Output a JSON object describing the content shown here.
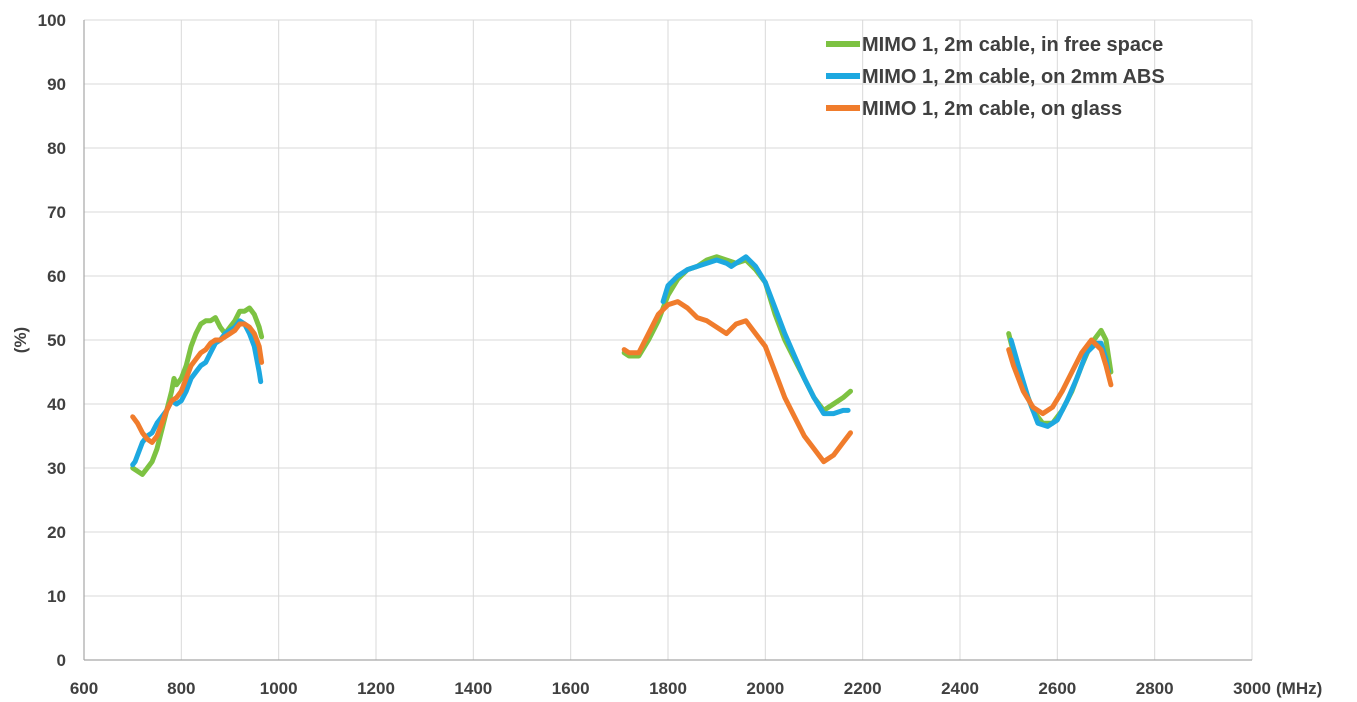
{
  "chart_data": {
    "type": "line",
    "title": "",
    "xlabel": "(MHz)",
    "ylabel": "(%)",
    "xlim": [
      600,
      3000
    ],
    "ylim": [
      0,
      100
    ],
    "x_ticks": [
      600,
      800,
      1000,
      1200,
      1400,
      1600,
      1800,
      2000,
      2200,
      2400,
      2600,
      2800,
      3000
    ],
    "y_ticks": [
      0,
      10,
      20,
      30,
      40,
      50,
      60,
      70,
      80,
      90,
      100
    ],
    "x_tick_labels": [
      "600",
      "800",
      "1000",
      "1200",
      "1400",
      "1600",
      "1800",
      "2000",
      "2200",
      "2400",
      "2600",
      "2800",
      "3000"
    ],
    "y_tick_labels": [
      "0",
      "10",
      "20",
      "30",
      "40",
      "50",
      "60",
      "70",
      "80",
      "90",
      "100"
    ],
    "grid": true,
    "legend_position": "top-right",
    "series": [
      {
        "name": "MIMO 1, 2m cable, in free space",
        "color": "#7dc242",
        "segments": [
          [
            [
              700,
              30
            ],
            [
              710,
              29.5
            ],
            [
              720,
              29
            ],
            [
              730,
              30
            ],
            [
              740,
              31
            ],
            [
              750,
              33
            ],
            [
              760,
              36
            ],
            [
              770,
              39
            ],
            [
              780,
              42
            ],
            [
              785,
              44
            ],
            [
              790,
              43
            ],
            [
              800,
              44
            ],
            [
              810,
              46
            ],
            [
              820,
              49
            ],
            [
              830,
              51
            ],
            [
              840,
              52.5
            ],
            [
              850,
              53
            ],
            [
              860,
              53
            ],
            [
              870,
              53.5
            ],
            [
              880,
              52
            ],
            [
              890,
              51
            ],
            [
              900,
              52
            ],
            [
              910,
              53
            ],
            [
              920,
              54.5
            ],
            [
              930,
              54.5
            ],
            [
              940,
              55
            ],
            [
              950,
              54
            ],
            [
              960,
              52
            ],
            [
              965,
              50.5
            ]
          ],
          [
            [
              1710,
              48
            ],
            [
              1720,
              47.5
            ],
            [
              1740,
              47.5
            ],
            [
              1760,
              50
            ],
            [
              1780,
              53
            ],
            [
              1800,
              57
            ],
            [
              1820,
              59.5
            ],
            [
              1840,
              61
            ],
            [
              1860,
              61.5
            ],
            [
              1880,
              62.5
            ],
            [
              1900,
              63
            ],
            [
              1920,
              62.5
            ],
            [
              1940,
              62
            ],
            [
              1960,
              62.5
            ],
            [
              1980,
              61
            ],
            [
              2000,
              59
            ],
            [
              2020,
              54
            ],
            [
              2040,
              50
            ],
            [
              2060,
              47
            ],
            [
              2080,
              44
            ],
            [
              2100,
              41
            ],
            [
              2120,
              39
            ],
            [
              2140,
              40
            ],
            [
              2160,
              41
            ],
            [
              2175,
              42
            ]
          ],
          [
            [
              2500,
              51
            ],
            [
              2510,
              48
            ],
            [
              2530,
              43
            ],
            [
              2550,
              39
            ],
            [
              2570,
              37
            ],
            [
              2590,
              37
            ],
            [
              2610,
              39
            ],
            [
              2630,
              42
            ],
            [
              2650,
              46
            ],
            [
              2670,
              49.5
            ],
            [
              2690,
              51.5
            ],
            [
              2700,
              50
            ],
            [
              2710,
              45
            ]
          ]
        ]
      },
      {
        "name": "MIMO 1, 2m cable, on 2mm ABS",
        "color": "#1da8e0",
        "segments": [
          [
            [
              700,
              30.5
            ],
            [
              705,
              31
            ],
            [
              710,
              32
            ],
            [
              720,
              34
            ],
            [
              730,
              35
            ],
            [
              740,
              35.5
            ],
            [
              750,
              37
            ],
            [
              760,
              38
            ],
            [
              770,
              39
            ],
            [
              780,
              40.5
            ],
            [
              790,
              40
            ],
            [
              800,
              40.5
            ],
            [
              810,
              42
            ],
            [
              820,
              44
            ],
            [
              830,
              45
            ],
            [
              840,
              46
            ],
            [
              850,
              46.5
            ],
            [
              860,
              48
            ],
            [
              870,
              49.5
            ],
            [
              880,
              50
            ],
            [
              890,
              51
            ],
            [
              900,
              51.5
            ],
            [
              910,
              52
            ],
            [
              920,
              53
            ],
            [
              930,
              52.5
            ],
            [
              940,
              51
            ],
            [
              950,
              49
            ],
            [
              960,
              45
            ],
            [
              963,
              43.5
            ]
          ],
          [
            [
              1790,
              56
            ],
            [
              1800,
              58.5
            ],
            [
              1820,
              60
            ],
            [
              1840,
              61
            ],
            [
              1860,
              61.5
            ],
            [
              1880,
              62
            ],
            [
              1900,
              62.5
            ],
            [
              1920,
              62
            ],
            [
              1930,
              61.5
            ],
            [
              1940,
              62
            ],
            [
              1960,
              63
            ],
            [
              1980,
              61.5
            ],
            [
              2000,
              59
            ],
            [
              2020,
              55
            ],
            [
              2040,
              51
            ],
            [
              2060,
              47.5
            ],
            [
              2080,
              44
            ],
            [
              2100,
              41
            ],
            [
              2120,
              38.5
            ],
            [
              2140,
              38.5
            ],
            [
              2160,
              39
            ],
            [
              2170,
              39
            ]
          ],
          [
            [
              2505,
              50
            ],
            [
              2520,
              46
            ],
            [
              2540,
              41
            ],
            [
              2560,
              37
            ],
            [
              2580,
              36.5
            ],
            [
              2600,
              37.5
            ],
            [
              2620,
              40.5
            ],
            [
              2640,
              44
            ],
            [
              2660,
              48
            ],
            [
              2680,
              49.5
            ],
            [
              2690,
              49.5
            ],
            [
              2700,
              47
            ],
            [
              2705,
              45
            ]
          ]
        ]
      },
      {
        "name": "MIMO 1, 2m cable, on glass",
        "color": "#f07c2c",
        "segments": [
          [
            [
              700,
              38
            ],
            [
              710,
              37
            ],
            [
              720,
              35.5
            ],
            [
              730,
              34.5
            ],
            [
              740,
              34
            ],
            [
              750,
              35
            ],
            [
              760,
              37
            ],
            [
              770,
              39
            ],
            [
              780,
              40.5
            ],
            [
              790,
              41
            ],
            [
              800,
              42
            ],
            [
              810,
              44
            ],
            [
              820,
              46
            ],
            [
              830,
              47
            ],
            [
              840,
              48
            ],
            [
              850,
              48.5
            ],
            [
              860,
              49.5
            ],
            [
              870,
              50
            ],
            [
              880,
              50
            ],
            [
              890,
              50.5
            ],
            [
              900,
              51
            ],
            [
              910,
              51.5
            ],
            [
              920,
              52.5
            ],
            [
              930,
              52.5
            ],
            [
              940,
              52
            ],
            [
              950,
              51
            ],
            [
              960,
              49
            ],
            [
              965,
              46.5
            ]
          ],
          [
            [
              1710,
              48.5
            ],
            [
              1720,
              48
            ],
            [
              1740,
              48
            ],
            [
              1760,
              51
            ],
            [
              1780,
              54
            ],
            [
              1800,
              55.5
            ],
            [
              1820,
              56
            ],
            [
              1840,
              55
            ],
            [
              1860,
              53.5
            ],
            [
              1880,
              53
            ],
            [
              1900,
              52
            ],
            [
              1920,
              51
            ],
            [
              1940,
              52.5
            ],
            [
              1960,
              53
            ],
            [
              1980,
              51
            ],
            [
              2000,
              49
            ],
            [
              2020,
              45
            ],
            [
              2040,
              41
            ],
            [
              2060,
              38
            ],
            [
              2080,
              35
            ],
            [
              2100,
              33
            ],
            [
              2120,
              31
            ],
            [
              2140,
              32
            ],
            [
              2160,
              34
            ],
            [
              2175,
              35.5
            ]
          ],
          [
            [
              2500,
              48.5
            ],
            [
              2510,
              46
            ],
            [
              2530,
              42
            ],
            [
              2550,
              39.5
            ],
            [
              2570,
              38.5
            ],
            [
              2590,
              39.5
            ],
            [
              2610,
              42
            ],
            [
              2630,
              45
            ],
            [
              2650,
              48
            ],
            [
              2670,
              50
            ],
            [
              2690,
              48.5
            ],
            [
              2700,
              46
            ],
            [
              2710,
              43
            ]
          ]
        ]
      }
    ]
  }
}
